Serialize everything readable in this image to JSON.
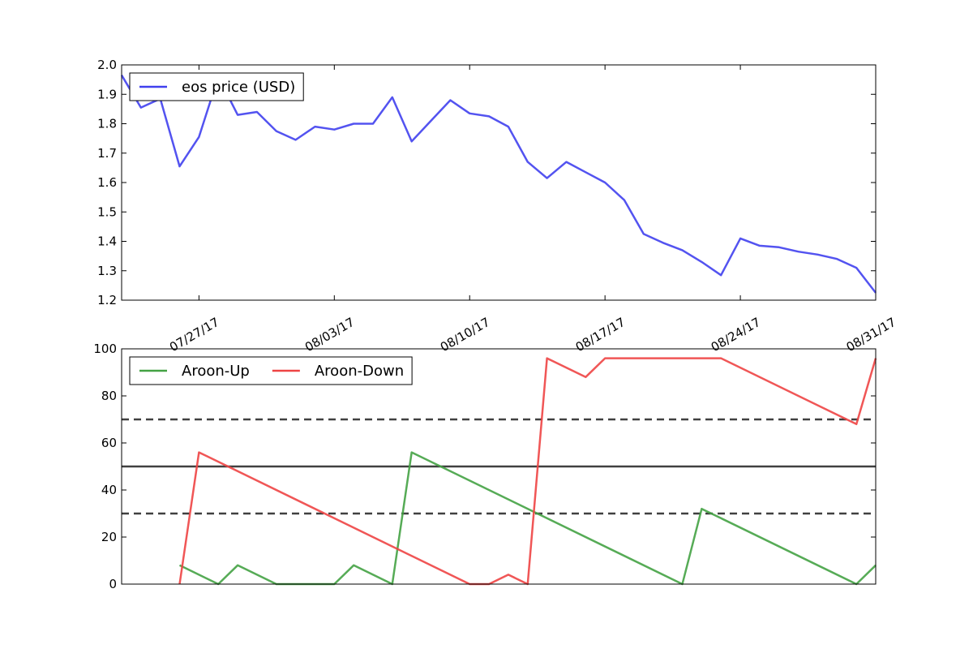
{
  "chart_data": [
    {
      "type": "line",
      "x_range": [
        "07/23/17",
        "08/31/17"
      ],
      "x_tick_labels": [
        "07/27/17",
        "08/03/17",
        "08/10/17",
        "08/17/17",
        "08/24/17",
        "08/31/17"
      ],
      "ylim": [
        1.2,
        2.0
      ],
      "y_tick_labels": [
        "1.2",
        "1.3",
        "1.4",
        "1.5",
        "1.6",
        "1.7",
        "1.8",
        "1.9",
        "2.0"
      ],
      "grid": false,
      "legend_position": "top-left",
      "series": [
        {
          "name": "eos price (USD)",
          "color": "#4040ee",
          "x": [
            "07/23/17",
            "07/24/17",
            "07/25/17",
            "07/26/17",
            "07/27/17",
            "07/28/17",
            "07/29/17",
            "07/30/17",
            "07/31/17",
            "08/01/17",
            "08/02/17",
            "08/03/17",
            "08/04/17",
            "08/05/17",
            "08/06/17",
            "08/07/17",
            "08/08/17",
            "08/09/17",
            "08/10/17",
            "08/11/17",
            "08/12/17",
            "08/13/17",
            "08/14/17",
            "08/15/17",
            "08/16/17",
            "08/17/17",
            "08/18/17",
            "08/19/17",
            "08/20/17",
            "08/21/17",
            "08/22/17",
            "08/23/17",
            "08/24/17",
            "08/25/17",
            "08/26/17",
            "08/27/17",
            "08/28/17",
            "08/29/17",
            "08/30/17",
            "08/31/17"
          ],
          "values": [
            1.965,
            1.855,
            1.885,
            1.655,
            1.755,
            1.96,
            1.83,
            1.84,
            1.775,
            1.745,
            1.79,
            1.78,
            1.8,
            1.8,
            1.89,
            1.74,
            1.81,
            1.88,
            1.835,
            1.825,
            1.79,
            1.67,
            1.615,
            1.67,
            1.635,
            1.6,
            1.54,
            1.425,
            1.395,
            1.37,
            1.33,
            1.285,
            1.41,
            1.385,
            1.38,
            1.365,
            1.355,
            1.34,
            1.31,
            1.225
          ]
        }
      ]
    },
    {
      "type": "line",
      "x_range": [
        "07/23/17",
        "08/31/17"
      ],
      "ylim": [
        0,
        100
      ],
      "y_tick_labels": [
        "0",
        "20",
        "40",
        "60",
        "80",
        "100"
      ],
      "grid": false,
      "legend_position": "top-left",
      "reference_lines": [
        {
          "value": 70,
          "style": "dashed",
          "color": "#404040"
        },
        {
          "value": 50,
          "style": "solid",
          "color": "#404040"
        },
        {
          "value": 30,
          "style": "dashed",
          "color": "#404040"
        }
      ],
      "series": [
        {
          "name": "Aroon-Up",
          "color": "#44a244",
          "x": [
            "07/26/17",
            "07/28/17",
            "07/29/17",
            "07/31/17",
            "08/03/17",
            "08/04/17",
            "08/06/17",
            "08/07/17",
            "08/21/17",
            "08/22/17",
            "08/30/17",
            "08/31/17"
          ],
          "values": [
            8,
            0,
            8,
            0,
            0,
            8,
            0,
            56,
            0,
            32,
            0,
            8
          ]
        },
        {
          "name": "Aroon-Down",
          "color": "#ee4444",
          "x": [
            "07/26/17",
            "07/27/17",
            "08/10/17",
            "08/11/17",
            "08/12/17",
            "08/13/17",
            "08/14/17",
            "08/16/17",
            "08/17/17",
            "08/23/17",
            "08/30/17",
            "08/31/17"
          ],
          "values": [
            0,
            56,
            0,
            0,
            4,
            0,
            96,
            88,
            96,
            96,
            68,
            96
          ]
        }
      ]
    }
  ]
}
